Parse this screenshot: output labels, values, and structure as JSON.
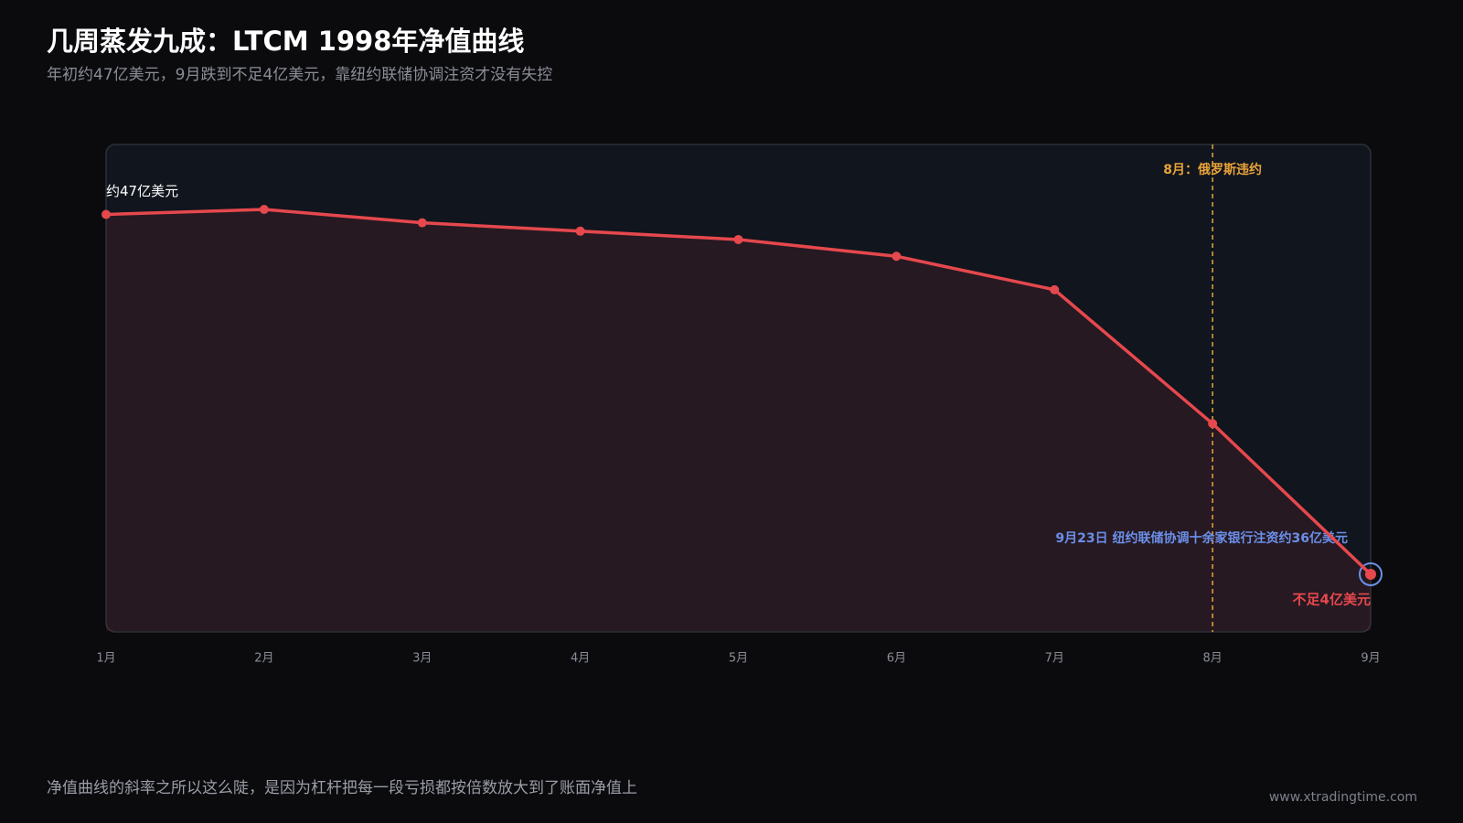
{
  "chart_data": {
    "type": "line",
    "title": "几周蒸发九成：LTCM 1998年净值曲线",
    "subtitle": "年初约47亿美元，9月跌到不足4亿美元，靠纽约联储协调注资才没有失控",
    "categories": [
      "1月",
      "2月",
      "3月",
      "4月",
      "5月",
      "6月",
      "7月",
      "8月",
      "9月"
    ],
    "values": [
      47,
      47.6,
      46,
      45,
      44,
      42,
      38,
      22,
      4
    ],
    "value_labels": [
      "约47亿美元",
      null,
      null,
      null,
      null,
      null,
      null,
      null,
      "不足4亿美元"
    ],
    "color": "#e5484d",
    "annotations": [
      {
        "text": "8月：俄罗斯违约",
        "at": "8月",
        "color": "#e8a33a"
      },
      {
        "text": "9月23日 纽约联储协调十余家银行注资约36亿美元",
        "at": "9月",
        "color": "#6b8fe8"
      }
    ]
  },
  "footer": {
    "note": "净值曲线的斜率之所以这么陡，是因为杠杆把每一段亏损都按倍数放大到了账面净值上",
    "source": "www.xtradingtime.com"
  }
}
